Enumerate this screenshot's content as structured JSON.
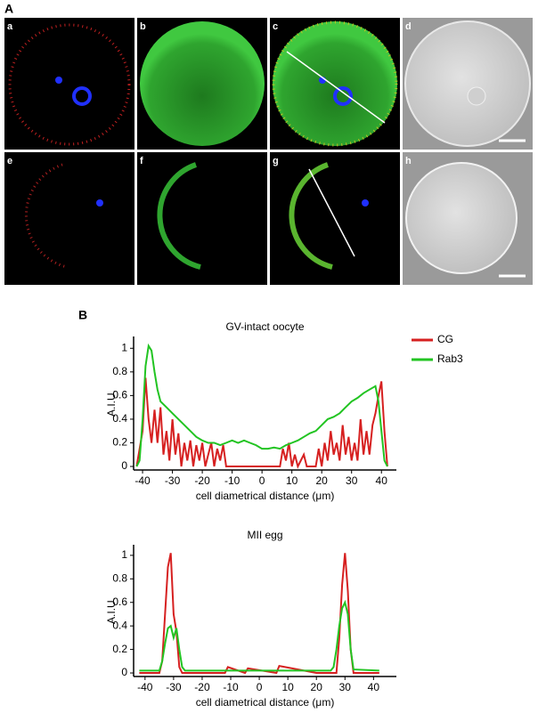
{
  "figure_labels": [
    "A",
    "B"
  ],
  "panel_labels": [
    "a",
    "b",
    "c",
    "d",
    "e",
    "f",
    "g",
    "h"
  ],
  "chart_data": [
    {
      "type": "line",
      "title": "GV-intact oocyte",
      "xlabel": "cell diametrical distance (μm)",
      "ylabel": "A.I.U.",
      "xlim": [
        -43,
        45
      ],
      "ylim": [
        -0.03,
        1.1
      ],
      "xticks": [
        -40,
        -30,
        -20,
        -10,
        0,
        10,
        20,
        30,
        40
      ],
      "yticks": [
        0,
        0.2,
        0.4,
        0.6,
        0.8,
        1
      ],
      "legend": "upper right",
      "series": [
        {
          "name": "CG",
          "color": "#d62020",
          "x": [
            -42,
            -40,
            -39,
            -38,
            -37,
            -36,
            -35,
            -34,
            -33,
            -32,
            -31,
            -30,
            -29,
            -28,
            -27,
            -26,
            -25,
            -24,
            -23,
            -22,
            -21,
            -20,
            -19,
            -18,
            -17,
            -16,
            -15,
            -14,
            -13,
            -12,
            -10,
            -8,
            0,
            6,
            7,
            8,
            9,
            10,
            11,
            12,
            14,
            15,
            18,
            19,
            20,
            21,
            22,
            23,
            24,
            25,
            26,
            27,
            28,
            29,
            30,
            31,
            32,
            33,
            34,
            35,
            36,
            37,
            38,
            39,
            40,
            41,
            42
          ],
          "values": [
            0,
            0.3,
            0.75,
            0.4,
            0.2,
            0.48,
            0.2,
            0.5,
            0.1,
            0.3,
            0.05,
            0.4,
            0.1,
            0.28,
            0,
            0.2,
            0.05,
            0.22,
            0,
            0.18,
            0.05,
            0.2,
            0,
            0.1,
            0.2,
            0,
            0.15,
            0.05,
            0.18,
            0,
            0,
            0,
            0,
            0,
            0.15,
            0.05,
            0.2,
            0,
            0.1,
            0,
            0.1,
            0,
            0,
            0.15,
            0,
            0.2,
            0.05,
            0.3,
            0.1,
            0.2,
            0.05,
            0.35,
            0.1,
            0.25,
            0.05,
            0.2,
            0.05,
            0.4,
            0.1,
            0.3,
            0.1,
            0.35,
            0.45,
            0.6,
            0.72,
            0.3,
            0
          ]
        },
        {
          "name": "Rab3",
          "color": "#22c422",
          "x": [
            -42,
            -41,
            -40,
            -39,
            -38,
            -37,
            -36,
            -35,
            -34,
            -32,
            -30,
            -28,
            -26,
            -24,
            -22,
            -20,
            -18,
            -16,
            -14,
            -12,
            -10,
            -8,
            -6,
            -4,
            -2,
            0,
            2,
            4,
            6,
            8,
            10,
            12,
            14,
            16,
            18,
            20,
            22,
            24,
            26,
            28,
            30,
            32,
            34,
            36,
            38,
            39,
            40,
            41,
            42
          ],
          "values": [
            0,
            0.05,
            0.4,
            0.85,
            1.02,
            0.98,
            0.8,
            0.65,
            0.55,
            0.5,
            0.45,
            0.4,
            0.35,
            0.3,
            0.25,
            0.22,
            0.2,
            0.2,
            0.18,
            0.2,
            0.22,
            0.2,
            0.22,
            0.2,
            0.18,
            0.15,
            0.15,
            0.16,
            0.15,
            0.18,
            0.2,
            0.22,
            0.25,
            0.28,
            0.3,
            0.35,
            0.4,
            0.42,
            0.45,
            0.5,
            0.55,
            0.58,
            0.62,
            0.65,
            0.68,
            0.55,
            0.3,
            0.05,
            0
          ]
        }
      ]
    },
    {
      "type": "line",
      "title": "MII egg",
      "xlabel": "cell diametrical distance (μm)",
      "ylabel": "A.I.U.",
      "xlim": [
        -44,
        48
      ],
      "ylim": [
        -0.03,
        1.09
      ],
      "xticks": [
        -40,
        -30,
        -20,
        -10,
        0,
        10,
        20,
        30,
        40
      ],
      "yticks": [
        0,
        0.2,
        0.4,
        0.6,
        0.8,
        1
      ],
      "series": [
        {
          "name": "CG",
          "color": "#d62020",
          "x": [
            -42,
            -35,
            -34,
            -33,
            -32,
            -31,
            -30,
            -29,
            -28,
            -27,
            -20,
            -12,
            -11,
            -5,
            -4,
            6,
            7,
            20,
            27,
            28,
            29,
            30,
            31,
            32,
            33,
            42
          ],
          "values": [
            0,
            0,
            0.1,
            0.5,
            0.9,
            1.02,
            0.5,
            0.35,
            0.05,
            0,
            0,
            0,
            0.05,
            0,
            0.04,
            0,
            0.06,
            0,
            0,
            0.3,
            0.75,
            1.02,
            0.7,
            0.2,
            0,
            0
          ]
        },
        {
          "name": "Rab3",
          "color": "#22c422",
          "x": [
            -42,
            -35,
            -34,
            -33,
            -32,
            -31,
            -30,
            -29,
            -28,
            -27,
            -26,
            -20,
            0,
            20,
            25,
            26,
            27,
            28,
            29,
            30,
            31,
            32,
            33,
            42
          ],
          "values": [
            0.02,
            0.02,
            0.1,
            0.25,
            0.38,
            0.4,
            0.3,
            0.38,
            0.2,
            0.05,
            0.02,
            0.02,
            0.02,
            0.02,
            0.02,
            0.05,
            0.2,
            0.4,
            0.55,
            0.6,
            0.5,
            0.2,
            0.03,
            0.02
          ]
        }
      ]
    }
  ]
}
